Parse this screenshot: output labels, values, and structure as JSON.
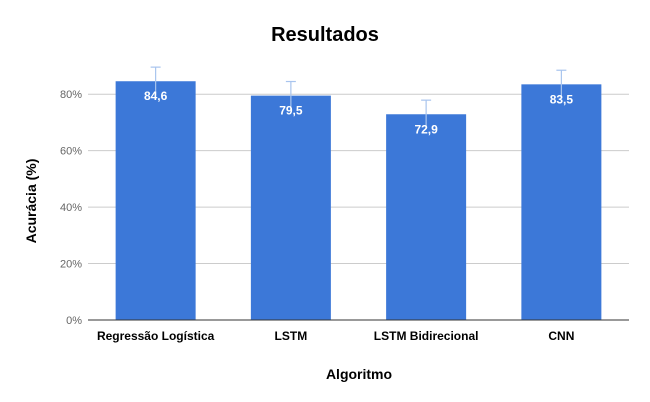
{
  "chart_data": {
    "type": "bar",
    "title": "Resultados",
    "xlabel": "Algoritmo",
    "ylabel": "Acurácia (%)",
    "categories": [
      "Regressão Logística",
      "LSTM",
      "LSTM Bidirecional",
      "CNN"
    ],
    "values": [
      84.6,
      79.5,
      72.9,
      83.5
    ],
    "value_labels": [
      "84,6",
      "79,5",
      "72,9",
      "83,5"
    ],
    "error": [
      5,
      5,
      5,
      5
    ],
    "ylim": [
      0,
      90
    ],
    "yticks": [
      0,
      20,
      40,
      60,
      80
    ],
    "ytick_labels": [
      "0%",
      "20%",
      "40%",
      "60%",
      "80%"
    ],
    "grid": true,
    "legend": "none",
    "colors": {
      "bar": "#3c78d8",
      "error_bar": "#a8c4ee",
      "grid": "#cccccc"
    }
  }
}
